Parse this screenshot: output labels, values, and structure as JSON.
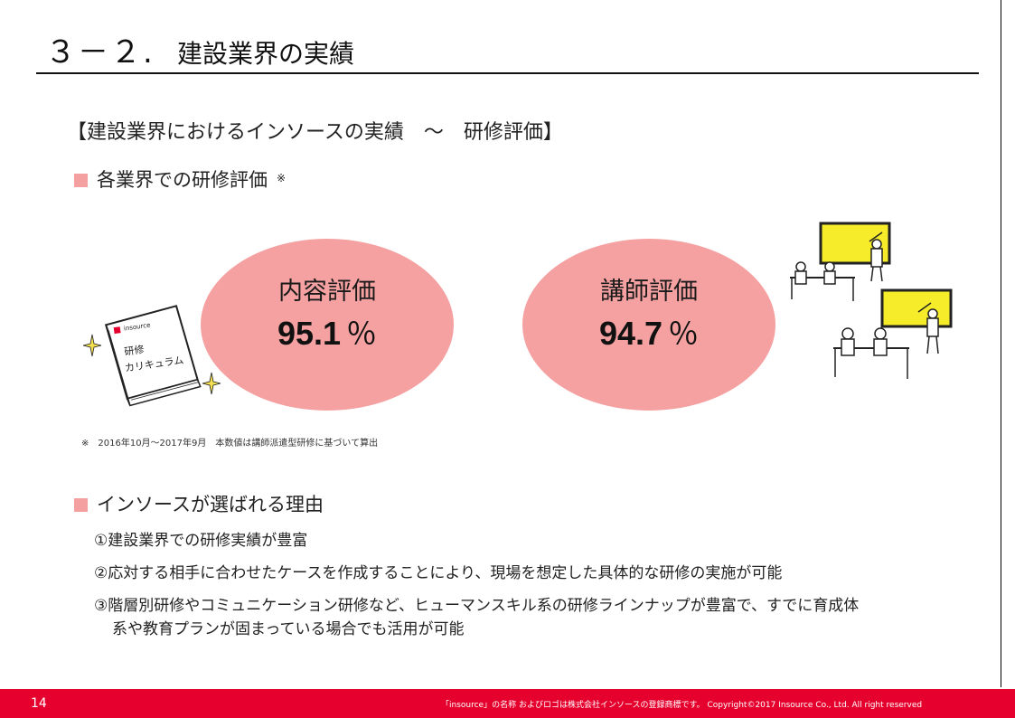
{
  "header": {
    "number": "３－２.",
    "title": "建設業界の実績"
  },
  "subheading": "【建設業界におけるインソースの実績　～　研修評価】",
  "section1": {
    "label": "各業界での研修評価",
    "note_mark": "※"
  },
  "evaluations": [
    {
      "label": "内容評価",
      "value": "95.1",
      "unit": "％"
    },
    {
      "label": "講師評価",
      "value": "94.7",
      "unit": "％"
    }
  ],
  "book": {
    "brand": "insource",
    "line1": "研修",
    "line2": "カリキュラム"
  },
  "footnote": "※　2016年10月～2017年9月　本数値は講師派遣型研修に基づいて算出",
  "section2": {
    "label": "インソースが選ばれる理由"
  },
  "reasons": [
    {
      "text": "①建設業界での研修実績が豊富",
      "cont": ""
    },
    {
      "text": "②応対する相手に合わせたケースを作成することにより、現場を想定した具体的な研修の実施が可能",
      "cont": ""
    },
    {
      "text": "③階層別研修やコミュニケーション研修など、ヒューマンスキル系の研修ラインナップが豊富で、すでに育成体",
      "cont": "系や教育プランが固まっている場合でも活用が可能"
    }
  ],
  "footer": {
    "page": "14",
    "copyright": "「insource」の名称 およびロゴは株式会社インソースの登録商標です。 Copyright©2017 Insource Co., Ltd. All right reserved"
  },
  "colors": {
    "accent_red": "#e5002d",
    "ellipse_pink": "#f5a1a1",
    "bullet_pink": "#f4a0a0"
  }
}
